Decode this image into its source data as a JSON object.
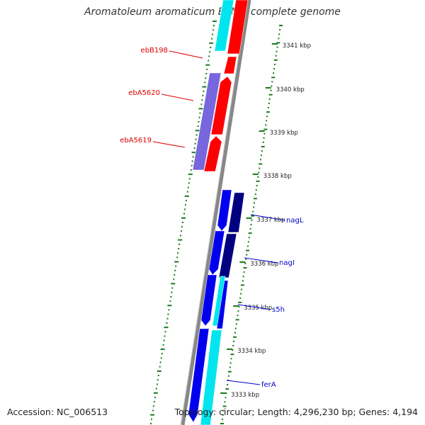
{
  "title": "Aromatoleum aromaticum EbN1, complete genome",
  "footer": {
    "accession": "Accession: NC_006513",
    "topology": "Topology: circular; Length: 4,296,230 bp; Genes: 4,194"
  },
  "colors": {
    "backbone": "#888888",
    "gc_marks": "#1a7a1a",
    "red_gene": "#ff0000",
    "purple_gene": "#7766dd",
    "blue_gene": "#0000ee",
    "navy_gene": "#000080",
    "cyan_gene": "#00e5ee",
    "red_label": "#dd0000",
    "blue_label": "#0000cc"
  },
  "ticks": [
    {
      "label": "3341 kbp"
    },
    {
      "label": "3340 kbp"
    },
    {
      "label": "3339 kbp"
    },
    {
      "label": "3338 kbp"
    },
    {
      "label": "3337 kbp"
    },
    {
      "label": "3336 kbp"
    },
    {
      "label": "3335 kbp"
    },
    {
      "label": "3334 kbp"
    },
    {
      "label": "3333 kbp"
    }
  ],
  "gene_labels": [
    {
      "text": "ebB198",
      "color": "red"
    },
    {
      "text": "ebA5620",
      "color": "red"
    },
    {
      "text": "ebA5619",
      "color": "red"
    },
    {
      "text": "nagL",
      "color": "blue"
    },
    {
      "text": "nagI",
      "color": "blue"
    },
    {
      "text": "s5h",
      "color": "blue"
    },
    {
      "text": "ferA",
      "color": "blue"
    }
  ]
}
